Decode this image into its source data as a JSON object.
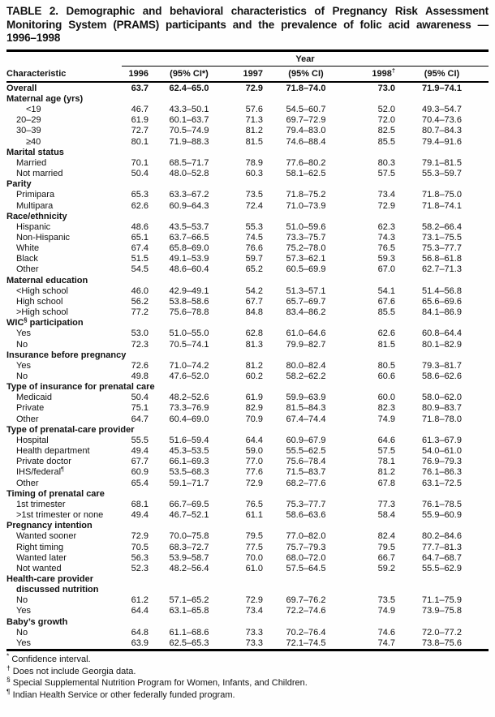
{
  "title_lines": [
    "TABLE 2. Demographic and behavioral characteristics of Pregnancy Risk Assessment",
    "Monitoring System (PRAMS) participants and the prevalence of folic acid awareness —",
    "1996–1998"
  ],
  "table": {
    "year_header": "Year",
    "columns": [
      "Characteristic",
      "1996",
      "(95% CI*)",
      "1997",
      "(95% CI)",
      "1998^{†}",
      "(95% CI)"
    ],
    "rows": [
      {
        "t": "overall",
        "label": "Overall",
        "v": [
          "63.7",
          "62.4–65.0",
          "72.9",
          "71.8–74.0",
          "73.0",
          "71.9–74.1"
        ]
      },
      {
        "t": "group",
        "label": "Maternal age (yrs)"
      },
      {
        "t": "data",
        "ind": 2,
        "label": "<19",
        "v": [
          "46.7",
          "43.3–50.1",
          "57.6",
          "54.5–60.7",
          "52.0",
          "49.3–54.7"
        ]
      },
      {
        "t": "data",
        "label": "20–29",
        "v": [
          "61.9",
          "60.1–63.7",
          "71.3",
          "69.7–72.9",
          "72.0",
          "70.4–73.6"
        ]
      },
      {
        "t": "data",
        "label": "30–39",
        "v": [
          "72.7",
          "70.5–74.9",
          "81.2",
          "79.4–83.0",
          "82.5",
          "80.7–84.3"
        ]
      },
      {
        "t": "data",
        "ind": 2,
        "label": "≥40",
        "v": [
          "80.1",
          "71.9–88.3",
          "81.5",
          "74.6–88.4",
          "85.5",
          "79.4–91.6"
        ]
      },
      {
        "t": "group",
        "label": "Marital status"
      },
      {
        "t": "data",
        "label": "Married",
        "v": [
          "70.1",
          "68.5–71.7",
          "78.9",
          "77.6–80.2",
          "80.3",
          "79.1–81.5"
        ]
      },
      {
        "t": "data",
        "label": "Not married",
        "v": [
          "50.4",
          "48.0–52.8",
          "60.3",
          "58.1–62.5",
          "57.5",
          "55.3–59.7"
        ]
      },
      {
        "t": "group",
        "label": "Parity"
      },
      {
        "t": "data",
        "label": "Primipara",
        "v": [
          "65.3",
          "63.3–67.2",
          "73.5",
          "71.8–75.2",
          "73.4",
          "71.8–75.0"
        ]
      },
      {
        "t": "data",
        "label": "Multipara",
        "v": [
          "62.6",
          "60.9–64.3",
          "72.4",
          "71.0–73.9",
          "72.9",
          "71.8–74.1"
        ]
      },
      {
        "t": "group",
        "label": "Race/ethnicity"
      },
      {
        "t": "data",
        "label": "Hispanic",
        "v": [
          "48.6",
          "43.5–53.7",
          "55.3",
          "51.0–59.6",
          "62.3",
          "58.2–66.4"
        ]
      },
      {
        "t": "data",
        "label": "Non-Hispanic",
        "v": [
          "65.1",
          "63.7–66.5",
          "74.5",
          "73.3–75.7",
          "74.3",
          "73.1–75.5"
        ]
      },
      {
        "t": "data",
        "label": "White",
        "v": [
          "67.4",
          "65.8–69.0",
          "76.6",
          "75.2–78.0",
          "76.5",
          "75.3–77.7"
        ]
      },
      {
        "t": "data",
        "label": "Black",
        "v": [
          "51.5",
          "49.1–53.9",
          "59.7",
          "57.3–62.1",
          "59.3",
          "56.8–61.8"
        ]
      },
      {
        "t": "data",
        "label": "Other",
        "v": [
          "54.5",
          "48.6–60.4",
          "65.2",
          "60.5–69.9",
          "67.0",
          "62.7–71.3"
        ]
      },
      {
        "t": "group",
        "label": "Maternal education"
      },
      {
        "t": "data",
        "label": "<High school",
        "v": [
          "46.0",
          "42.9–49.1",
          "54.2",
          "51.3–57.1",
          "54.1",
          "51.4–56.8"
        ]
      },
      {
        "t": "data",
        "label": "High school",
        "v": [
          "56.2",
          "53.8–58.6",
          "67.7",
          "65.7–69.7",
          "67.6",
          "65.6–69.6"
        ]
      },
      {
        "t": "data",
        "label": ">High school",
        "v": [
          "77.2",
          "75.6–78.8",
          "84.8",
          "83.4–86.2",
          "85.5",
          "84.1–86.9"
        ]
      },
      {
        "t": "group",
        "label": "WIC^{§} participation"
      },
      {
        "t": "data",
        "label": "Yes",
        "v": [
          "53.0",
          "51.0–55.0",
          "62.8",
          "61.0–64.6",
          "62.6",
          "60.8–64.4"
        ]
      },
      {
        "t": "data",
        "label": "No",
        "v": [
          "72.3",
          "70.5–74.1",
          "81.3",
          "79.9–82.7",
          "81.5",
          "80.1–82.9"
        ]
      },
      {
        "t": "group",
        "label": "Insurance before pregnancy"
      },
      {
        "t": "data",
        "label": "Yes",
        "v": [
          "72.6",
          "71.0–74.2",
          "81.2",
          "80.0–82.4",
          "80.5",
          "79.3–81.7"
        ]
      },
      {
        "t": "data",
        "label": "No",
        "v": [
          "49.8",
          "47.6–52.0",
          "60.2",
          "58.2–62.2",
          "60.6",
          "58.6–62.6"
        ]
      },
      {
        "t": "group",
        "label": "Type of insurance for prenatal care"
      },
      {
        "t": "data",
        "label": "Medicaid",
        "v": [
          "50.4",
          "48.2–52.6",
          "61.9",
          "59.9–63.9",
          "60.0",
          "58.0–62.0"
        ]
      },
      {
        "t": "data",
        "label": "Private",
        "v": [
          "75.1",
          "73.3–76.9",
          "82.9",
          "81.5–84.3",
          "82.3",
          "80.9–83.7"
        ]
      },
      {
        "t": "data",
        "label": "Other",
        "v": [
          "64.7",
          "60.4–69.0",
          "70.9",
          "67.4–74.4",
          "74.9",
          "71.8–78.0"
        ]
      },
      {
        "t": "group",
        "label": "Type of prenatal-care provider"
      },
      {
        "t": "data",
        "label": "Hospital",
        "v": [
          "55.5",
          "51.6–59.4",
          "64.4",
          "60.9–67.9",
          "64.6",
          "61.3–67.9"
        ]
      },
      {
        "t": "data",
        "label": "Health department",
        "v": [
          "49.4",
          "45.3–53.5",
          "59.0",
          "55.5–62.5",
          "57.5",
          "54.0–61.0"
        ]
      },
      {
        "t": "data",
        "label": "Private doctor",
        "v": [
          "67.7",
          "66.1–69.3",
          "77.0",
          "75.6–78.4",
          "78.1",
          "76.9–79.3"
        ]
      },
      {
        "t": "data",
        "label": "IHS/federal^{¶}",
        "v": [
          "60.9",
          "53.5–68.3",
          "77.6",
          "71.5–83.7",
          "81.2",
          "76.1–86.3"
        ]
      },
      {
        "t": "data",
        "label": "Other",
        "v": [
          "65.4",
          "59.1–71.7",
          "72.9",
          "68.2–77.6",
          "67.8",
          "63.1–72.5"
        ]
      },
      {
        "t": "group",
        "label": "Timing of prenatal care"
      },
      {
        "t": "data",
        "label": "1st trimester",
        "v": [
          "68.1",
          "66.7–69.5",
          "76.5",
          "75.3–77.7",
          "77.3",
          "76.1–78.5"
        ]
      },
      {
        "t": "data",
        "label": ">1st trimester or none",
        "v": [
          "49.4",
          "46.7–52.1",
          "61.1",
          "58.6–63.6",
          "58.4",
          "55.9–60.9"
        ]
      },
      {
        "t": "group",
        "label": "Pregnancy intention"
      },
      {
        "t": "data",
        "label": "Wanted sooner",
        "v": [
          "72.9",
          "70.0–75.8",
          "79.5",
          "77.0–82.0",
          "82.4",
          "80.2–84.6"
        ]
      },
      {
        "t": "data",
        "label": "Right timing",
        "v": [
          "70.5",
          "68.3–72.7",
          "77.5",
          "75.7–79.3",
          "79.5",
          "77.7–81.3"
        ]
      },
      {
        "t": "data",
        "label": "Wanted later",
        "v": [
          "56.3",
          "53.9–58.7",
          "70.0",
          "68.0–72.0",
          "66.7",
          "64.7–68.7"
        ]
      },
      {
        "t": "data",
        "label": "Not wanted",
        "v": [
          "52.3",
          "48.2–56.4",
          "61.0",
          "57.5–64.5",
          "59.2",
          "55.5–62.9"
        ]
      },
      {
        "t": "group2",
        "label": "Health-care provider",
        "label2": "discussed nutrition"
      },
      {
        "t": "data",
        "label": "No",
        "v": [
          "61.2",
          "57.1–65.2",
          "72.9",
          "69.7–76.2",
          "73.5",
          "71.1–75.9"
        ]
      },
      {
        "t": "data",
        "label": "Yes",
        "v": [
          "64.4",
          "63.1–65.8",
          "73.4",
          "72.2–74.6",
          "74.9",
          "73.9–75.8"
        ]
      },
      {
        "t": "group",
        "label": "Baby’s growth"
      },
      {
        "t": "data",
        "label": "No",
        "v": [
          "64.8",
          "61.1–68.6",
          "73.3",
          "70.2–76.4",
          "74.6",
          "72.0–77.2"
        ]
      },
      {
        "t": "data",
        "label": "Yes",
        "v": [
          "63.9",
          "62.5–65.3",
          "73.3",
          "72.1–74.5",
          "74.7",
          "73.8–75.6"
        ]
      }
    ]
  },
  "footnotes": [
    {
      "sym": "*",
      "text": "Confidence interval."
    },
    {
      "sym": "†",
      "text": "Does not include Georgia data."
    },
    {
      "sym": "§",
      "text": "Special Supplemental Nutrition Program for Women, Infants, and Children."
    },
    {
      "sym": "¶",
      "text": "Indian Health Service or other federally funded program."
    }
  ]
}
